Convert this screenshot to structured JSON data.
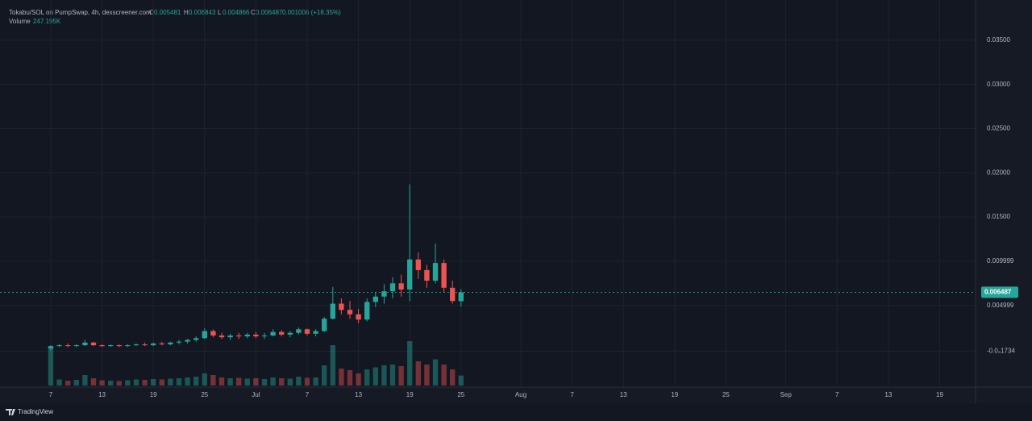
{
  "chart_data": {
    "type": "candlestick",
    "legend": {
      "symbol": "Tokabu/SOL on PumpSwap, 4h, dexscreener.com",
      "o_label": "O",
      "o": "0.005481",
      "h_label": "H",
      "h": "0.006843",
      "l_label": "L",
      "l": "0.004866",
      "c_label": "C",
      "c": "0.006487",
      "change": "0.001006 (+18.35%)",
      "volume_label": "Volume",
      "volume": "247.195K"
    },
    "x": [
      0,
      1,
      2,
      3,
      4,
      5,
      6,
      7,
      8,
      9,
      10,
      11,
      12,
      13,
      14,
      15,
      16,
      17,
      18,
      19,
      20,
      21,
      22,
      23,
      24,
      25,
      26,
      27,
      28,
      29,
      30,
      31,
      32,
      33,
      34,
      35,
      36,
      37,
      38,
      39,
      40,
      41,
      42,
      43,
      44,
      45,
      46,
      47,
      48
    ],
    "open": [
      0.0001,
      0.0004,
      0.0005,
      0.0004,
      0.0005,
      0.0008,
      0.0005,
      0.0004,
      0.0005,
      0.0004,
      0.0005,
      0.0006,
      0.0005,
      0.0007,
      0.0006,
      0.0008,
      0.0009,
      0.0011,
      0.0013,
      0.0021,
      0.0016,
      0.0014,
      0.0016,
      0.0015,
      0.0017,
      0.0015,
      0.0016,
      0.002,
      0.0017,
      0.0019,
      0.0023,
      0.0018,
      0.0021,
      0.0035,
      0.0052,
      0.0045,
      0.004,
      0.0034,
      0.0054,
      0.006,
      0.0066,
      0.0075,
      0.0068,
      0.0102,
      0.009,
      0.0078,
      0.0098,
      0.007,
      0.005481
    ],
    "high": [
      0.0005,
      0.0006,
      0.0007,
      0.0006,
      0.0011,
      0.0009,
      0.0006,
      0.0006,
      0.0006,
      0.0006,
      0.0007,
      0.0008,
      0.0008,
      0.0009,
      0.0009,
      0.0011,
      0.0012,
      0.0015,
      0.0024,
      0.0023,
      0.0019,
      0.0018,
      0.0019,
      0.0019,
      0.002,
      0.0019,
      0.0023,
      0.0022,
      0.0021,
      0.0025,
      0.0024,
      0.0023,
      0.0037,
      0.0071,
      0.0058,
      0.0055,
      0.0046,
      0.0058,
      0.0065,
      0.0074,
      0.0082,
      0.0085,
      0.0187,
      0.011,
      0.0096,
      0.012,
      0.0102,
      0.0078,
      0.006843
    ],
    "low": [
      -0.0001,
      0.0003,
      0.0003,
      0.0003,
      0.0004,
      0.0004,
      0.0003,
      0.0003,
      0.0003,
      0.0003,
      0.0004,
      0.0004,
      0.0004,
      0.0005,
      0.0005,
      0.0006,
      0.0007,
      0.0009,
      0.0012,
      0.0014,
      0.0012,
      0.0011,
      0.0012,
      0.0013,
      0.0013,
      0.0012,
      0.0015,
      0.0015,
      0.0014,
      0.0017,
      0.0016,
      0.0015,
      0.002,
      0.0034,
      0.004,
      0.0035,
      0.003,
      0.0032,
      0.0048,
      0.0052,
      0.0058,
      0.006,
      0.0055,
      0.008,
      0.007,
      0.0075,
      0.0065,
      0.0052,
      0.004866
    ],
    "close": [
      0.0004,
      0.0005,
      0.0004,
      0.0005,
      0.0008,
      0.0005,
      0.0004,
      0.0005,
      0.0004,
      0.0005,
      0.0006,
      0.0005,
      0.0007,
      0.0006,
      0.0008,
      0.0009,
      0.0011,
      0.0013,
      0.0021,
      0.0016,
      0.0014,
      0.0016,
      0.0015,
      0.0017,
      0.0015,
      0.0016,
      0.002,
      0.0017,
      0.0019,
      0.0023,
      0.0018,
      0.0021,
      0.0035,
      0.0052,
      0.0045,
      0.004,
      0.0034,
      0.0054,
      0.006,
      0.0066,
      0.0075,
      0.0068,
      0.0102,
      0.009,
      0.0078,
      0.0098,
      0.007,
      0.0055,
      0.006487
    ],
    "volume": [
      900,
      150,
      120,
      140,
      260,
      180,
      130,
      120,
      110,
      130,
      150,
      140,
      160,
      150,
      170,
      180,
      200,
      220,
      300,
      260,
      200,
      180,
      190,
      170,
      180,
      160,
      200,
      180,
      170,
      220,
      190,
      200,
      500,
      1000,
      420,
      380,
      300,
      400,
      450,
      500,
      520,
      480,
      1100,
      600,
      520,
      650,
      520,
      400,
      247.195
    ],
    "up_color": "#26a69a",
    "down_color": "#ef5350",
    "xlim": [
      -5.94,
      108.2
    ],
    "xticks": [
      {
        "value": 0,
        "label": "7"
      },
      {
        "value": 6,
        "label": "13"
      },
      {
        "value": 12,
        "label": "19"
      },
      {
        "value": 18,
        "label": "25"
      },
      {
        "value": 24,
        "label": "Jul"
      },
      {
        "value": 30,
        "label": "7"
      },
      {
        "value": 36,
        "label": "13"
      },
      {
        "value": 42,
        "label": "19"
      },
      {
        "value": 48,
        "label": "25"
      },
      {
        "value": 55,
        "label": "Aug"
      },
      {
        "value": 61,
        "label": "7"
      },
      {
        "value": 67,
        "label": "13"
      },
      {
        "value": 73,
        "label": "19"
      },
      {
        "value": 79,
        "label": "25"
      },
      {
        "value": 86,
        "label": "Sep"
      },
      {
        "value": 92,
        "label": "7"
      },
      {
        "value": 98,
        "label": "13"
      },
      {
        "value": 104,
        "label": "19"
      }
    ],
    "ylim": [
      -0.00424,
      0.03955
    ],
    "yticks": [
      {
        "value": 0.035,
        "label": "0.03500"
      },
      {
        "value": 0.03,
        "label": "0.03000"
      },
      {
        "value": 0.025,
        "label": "0.02500"
      },
      {
        "value": 0.02,
        "label": "0.02000"
      },
      {
        "value": 0.015,
        "label": "0.01500"
      },
      {
        "value": 0.009999,
        "label": "0.009999"
      },
      {
        "value": 0.004999,
        "label": "0.004999"
      },
      {
        "value": -0.0001734,
        "label": "-0.0₃1734"
      }
    ],
    "volume_lim": [
      0,
      1200
    ],
    "last_price": {
      "value": 0.006487,
      "label": "0.006487"
    },
    "grid": true,
    "footer": "TradingView"
  }
}
